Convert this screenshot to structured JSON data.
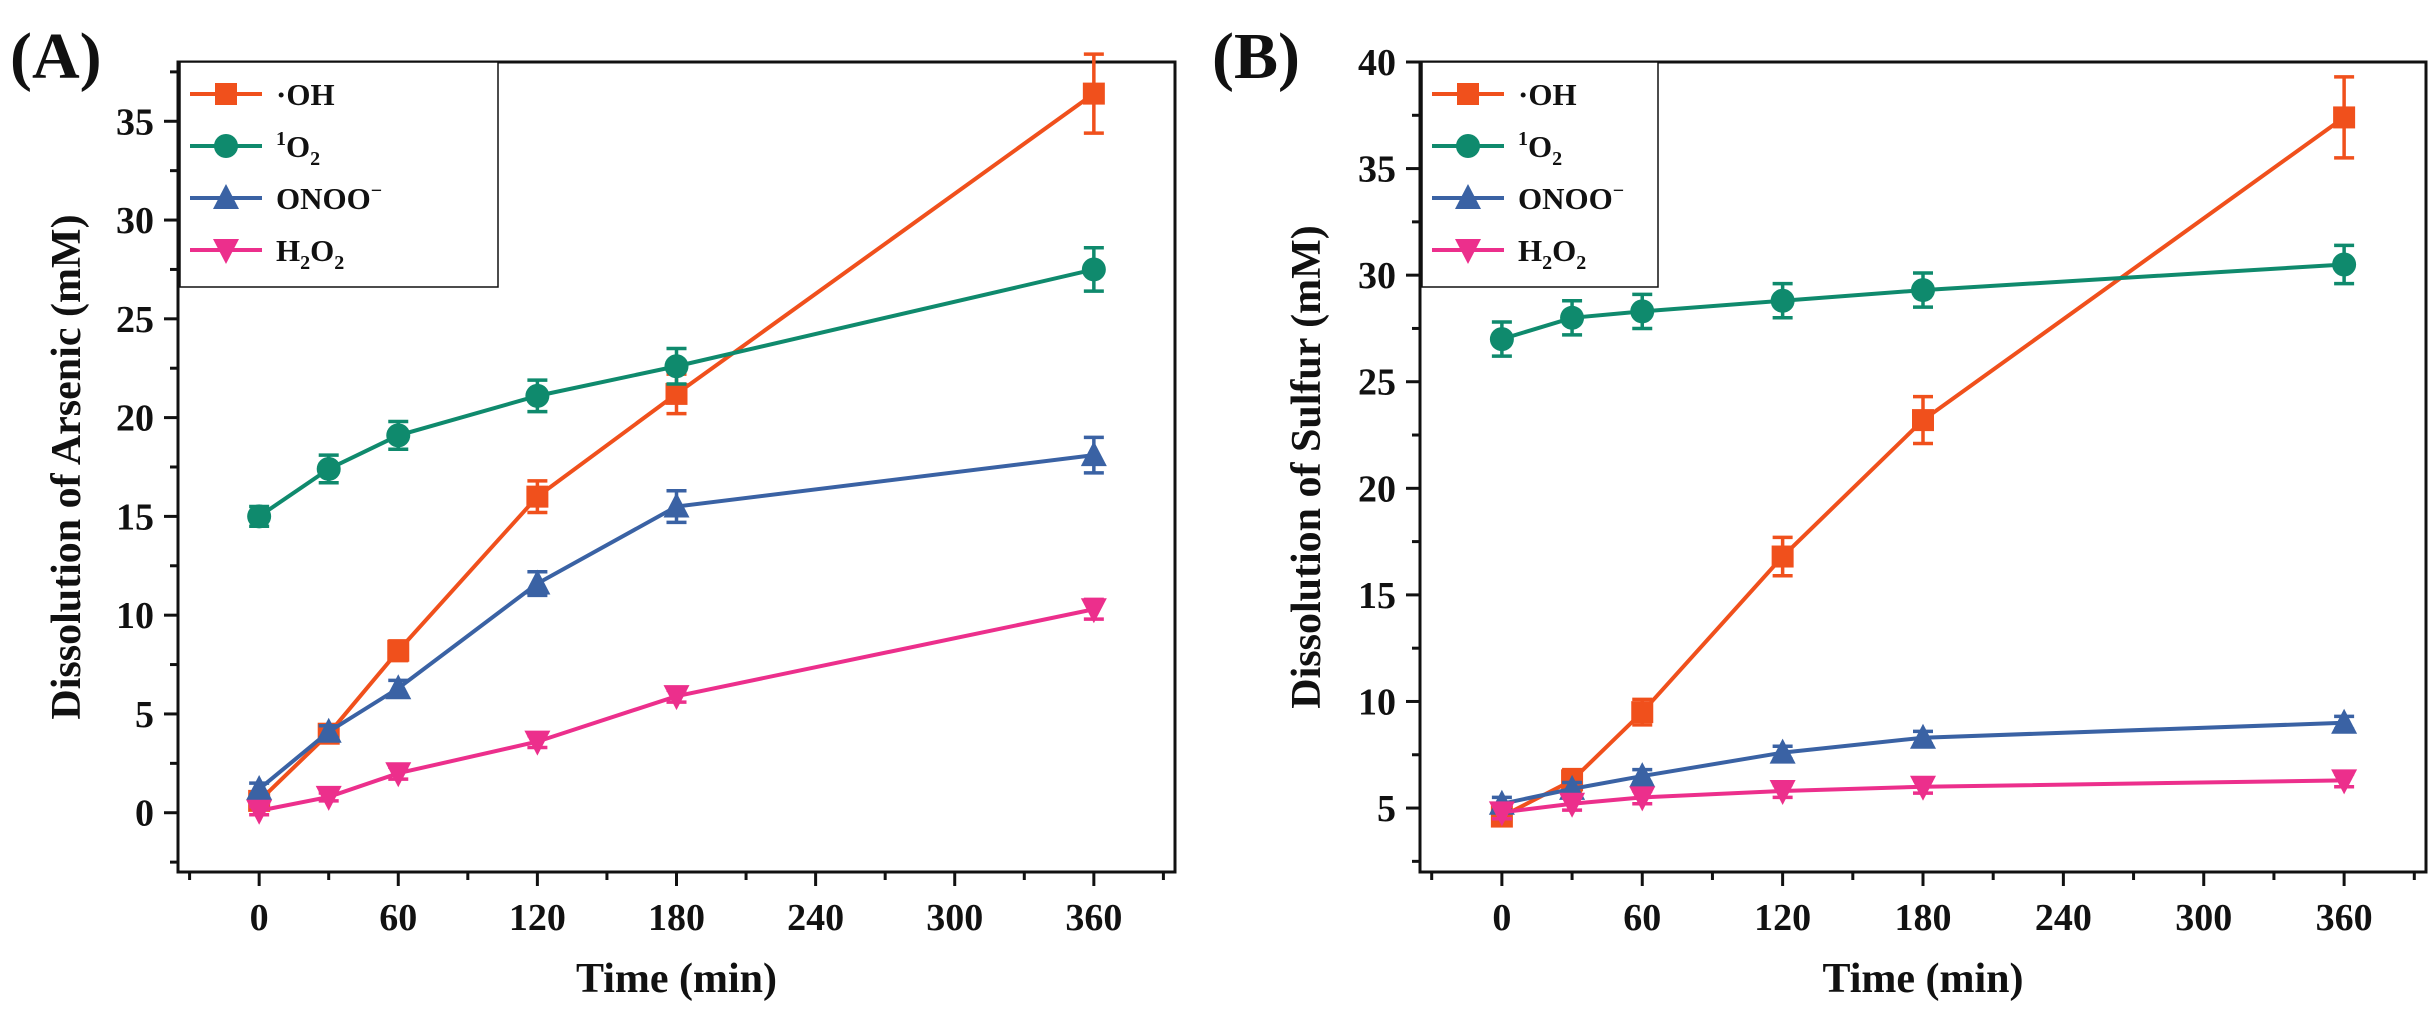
{
  "chart_data": [
    {
      "type": "line",
      "panel_label": "(A)",
      "xlabel": "Time (min)",
      "ylabel": "Dissolution of Arsenic (mM)",
      "xlim": [
        -35,
        395
      ],
      "ylim": [
        -3,
        38
      ],
      "xticks": [
        0,
        60,
        120,
        180,
        240,
        300,
        360
      ],
      "yticks": [
        0,
        5,
        10,
        15,
        20,
        25,
        30,
        35
      ],
      "x": [
        0,
        30,
        60,
        120,
        180,
        360
      ],
      "legend_position": "top-left",
      "series": [
        {
          "name": "·OH",
          "label_main": "·OH",
          "label_sub": "",
          "label_tail": "",
          "color": "#f0501c",
          "marker": "square",
          "values": [
            0.6,
            4.0,
            8.2,
            16.0,
            21.2,
            36.4
          ],
          "errors": [
            0.4,
            0.3,
            0.5,
            0.8,
            1.0,
            2.0
          ]
        },
        {
          "name": "1O2",
          "label_sup": "1",
          "label_main": "O",
          "label_sub": "2",
          "label_tail": "",
          "color": "#0f8a6d",
          "marker": "circle",
          "values": [
            15.0,
            17.4,
            19.1,
            21.1,
            22.6,
            27.5
          ],
          "errors": [
            0.5,
            0.7,
            0.7,
            0.8,
            0.9,
            1.1
          ]
        },
        {
          "name": "ONOO−",
          "label_main": "ONOO",
          "label_sup": "−",
          "label_sub": "",
          "label_tail": "",
          "color": "#3a62a4",
          "marker": "triangle-up",
          "values": [
            1.2,
            4.1,
            6.3,
            11.6,
            15.5,
            18.1
          ],
          "errors": [
            0.3,
            0.3,
            0.4,
            0.6,
            0.8,
            0.9
          ]
        },
        {
          "name": "H2O2",
          "label_main": "H",
          "label_sub": "2",
          "label_tail": "O",
          "label_sub2": "2",
          "color": "#ec2f8c",
          "marker": "triangle-down",
          "values": [
            0.1,
            0.8,
            2.0,
            3.6,
            5.9,
            10.3
          ],
          "errors": [
            0.2,
            0.2,
            0.3,
            0.3,
            0.3,
            0.5
          ]
        }
      ]
    },
    {
      "type": "line",
      "panel_label": "(B)",
      "xlabel": "Time (min)",
      "ylabel": "Dissolution of Sulfur (mM)",
      "xlim": [
        -35,
        395
      ],
      "ylim": [
        2,
        40
      ],
      "xticks": [
        0,
        60,
        120,
        180,
        240,
        300,
        360
      ],
      "yticks": [
        5,
        10,
        15,
        20,
        25,
        30,
        35,
        40
      ],
      "x": [
        0,
        30,
        60,
        120,
        180,
        360
      ],
      "legend_position": "top-left",
      "series": [
        {
          "name": "·OH",
          "label_main": "·OH",
          "label_sub": "",
          "label_tail": "",
          "color": "#f0501c",
          "marker": "square",
          "values": [
            4.6,
            6.3,
            9.5,
            16.8,
            23.2,
            37.4
          ],
          "errors": [
            0.4,
            0.5,
            0.6,
            0.9,
            1.1,
            1.9
          ]
        },
        {
          "name": "1O2",
          "label_sup": "1",
          "label_main": "O",
          "label_sub": "2",
          "label_tail": "",
          "color": "#0f8a6d",
          "marker": "circle",
          "values": [
            27.0,
            28.0,
            28.3,
            28.8,
            29.3,
            30.5
          ],
          "errors": [
            0.8,
            0.8,
            0.8,
            0.8,
            0.8,
            0.9
          ]
        },
        {
          "name": "ONOO−",
          "label_main": "ONOO",
          "label_sup": "−",
          "label_sub": "",
          "label_tail": "",
          "color": "#3a62a4",
          "marker": "triangle-up",
          "values": [
            5.2,
            5.9,
            6.5,
            7.6,
            8.3,
            9.0
          ],
          "errors": [
            0.3,
            0.3,
            0.3,
            0.3,
            0.3,
            0.3
          ]
        },
        {
          "name": "H2O2",
          "label_main": "H",
          "label_sub": "2",
          "label_tail": "O",
          "label_sub2": "2",
          "color": "#ec2f8c",
          "marker": "triangle-down",
          "values": [
            4.8,
            5.2,
            5.5,
            5.8,
            6.0,
            6.3
          ],
          "errors": [
            0.3,
            0.3,
            0.3,
            0.3,
            0.3,
            0.3
          ]
        }
      ]
    }
  ]
}
